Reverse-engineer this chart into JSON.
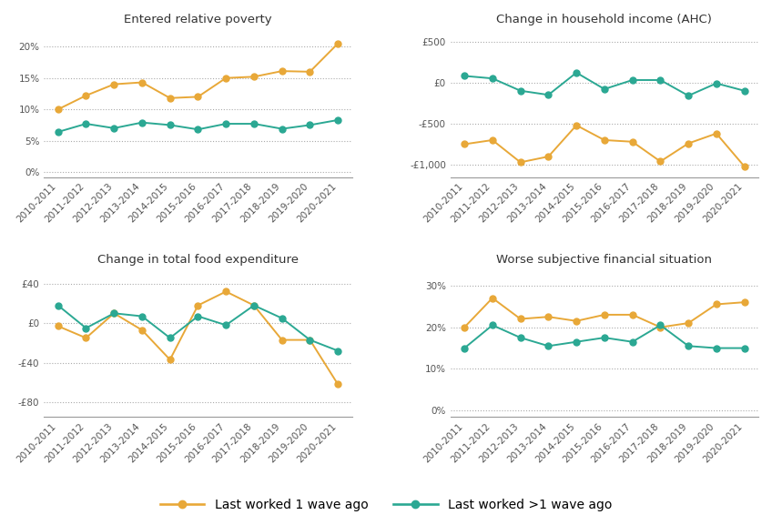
{
  "x_labels": [
    "2010-2011",
    "2011-2012",
    "2012-2013",
    "2013-2014",
    "2014-2015",
    "2015-2016",
    "2016-2017",
    "2017-2018",
    "2018-2019",
    "2019-2020",
    "2020-2021"
  ],
  "titles": [
    "Entered relative poverty",
    "Change in household income (AHC)",
    "Change in total food expenditure",
    "Worse subjective financial situation"
  ],
  "color_orange": "#E8A838",
  "color_teal": "#2BA893",
  "legend_labels": [
    "Last worked 1 wave ago",
    "Last worked >1 wave ago"
  ],
  "poverty_orange": [
    0.1,
    0.122,
    0.14,
    0.143,
    0.118,
    0.12,
    0.15,
    0.152,
    0.161,
    0.16,
    0.205
  ],
  "poverty_teal": [
    0.064,
    0.077,
    0.07,
    0.079,
    0.075,
    0.068,
    0.077,
    0.077,
    0.069,
    0.075,
    0.083
  ],
  "income_orange": [
    -750,
    -700,
    -970,
    -900,
    -520,
    -700,
    -720,
    -960,
    -740,
    -620,
    -1020
  ],
  "income_teal": [
    80,
    50,
    -100,
    -150,
    120,
    -80,
    30,
    30,
    -160,
    -10,
    -100
  ],
  "food_orange": [
    -3,
    -15,
    10,
    -7,
    -37,
    18,
    32,
    18,
    -17,
    -17,
    -62
  ],
  "food_teal": [
    18,
    -5,
    10,
    7,
    -15,
    7,
    -2,
    18,
    5,
    -17,
    -28
  ],
  "subjective_orange": [
    0.2,
    0.27,
    0.22,
    0.225,
    0.215,
    0.23,
    0.23,
    0.2,
    0.21,
    0.255,
    0.26
  ],
  "subjective_teal": [
    0.15,
    0.205,
    0.175,
    0.155,
    0.165,
    0.175,
    0.165,
    0.205,
    0.155,
    0.15,
    0.15
  ],
  "poverty_yticks": [
    0.0,
    0.05,
    0.1,
    0.15,
    0.2
  ],
  "poverty_ylim": [
    -0.008,
    0.228
  ],
  "income_yticks": [
    -1000,
    -500,
    0,
    500
  ],
  "income_ylim": [
    -1150,
    650
  ],
  "food_yticks": [
    -80,
    -40,
    0,
    40
  ],
  "food_ylim": [
    -95,
    55
  ],
  "subjective_yticks": [
    0.0,
    0.1,
    0.2,
    0.3
  ],
  "subjective_ylim": [
    -0.015,
    0.34
  ],
  "bg_color": "#FFFFFF",
  "grid_color": "#AAAAAA",
  "marker_size": 5,
  "line_width": 1.4,
  "title_fontsize": 9.5,
  "tick_fontsize": 7.5,
  "legend_fontsize": 10
}
